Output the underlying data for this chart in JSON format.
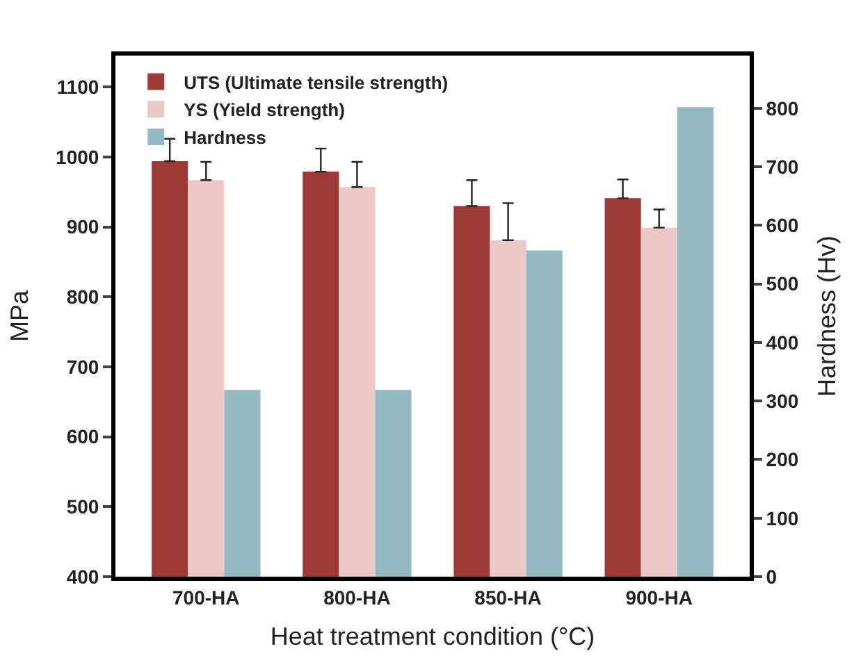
{
  "chart_data": {
    "type": "bar",
    "xlabel": "Heat treatment condition (°C)",
    "ylabel": "MPa",
    "y2label": "Hardness (Hv)",
    "categories": [
      "700-HA",
      "800-HA",
      "850-HA",
      "900-HA"
    ],
    "series": [
      {
        "name": "UTS (Ultimate tensile strength)",
        "color": "#9e3a35",
        "values": [
          994,
          979,
          930,
          941
        ],
        "errors": [
          [
            994,
            1026
          ],
          [
            979,
            1012
          ],
          [
            930,
            967
          ],
          [
            941,
            968
          ]
        ]
      },
      {
        "name": "YS (Yield strength)",
        "color": "#ecc8c8",
        "values": [
          967,
          957,
          881,
          899
        ],
        "errors": [
          [
            967,
            993
          ],
          [
            957,
            993
          ],
          [
            881,
            934
          ],
          [
            899,
            925
          ]
        ]
      },
      {
        "name": "Hardness",
        "color": "#94b9c3",
        "values": [
          319,
          319,
          557,
          802
        ],
        "axis": "y2"
      }
    ],
    "ylim": [
      400,
      1145
    ],
    "yticks": [
      400,
      500,
      600,
      700,
      800,
      900,
      1000,
      1100
    ],
    "y2lim": [
      0,
      890
    ],
    "y2ticks": [
      0,
      100,
      200,
      300,
      400,
      500,
      600,
      700,
      800
    ],
    "legend": "top left"
  }
}
